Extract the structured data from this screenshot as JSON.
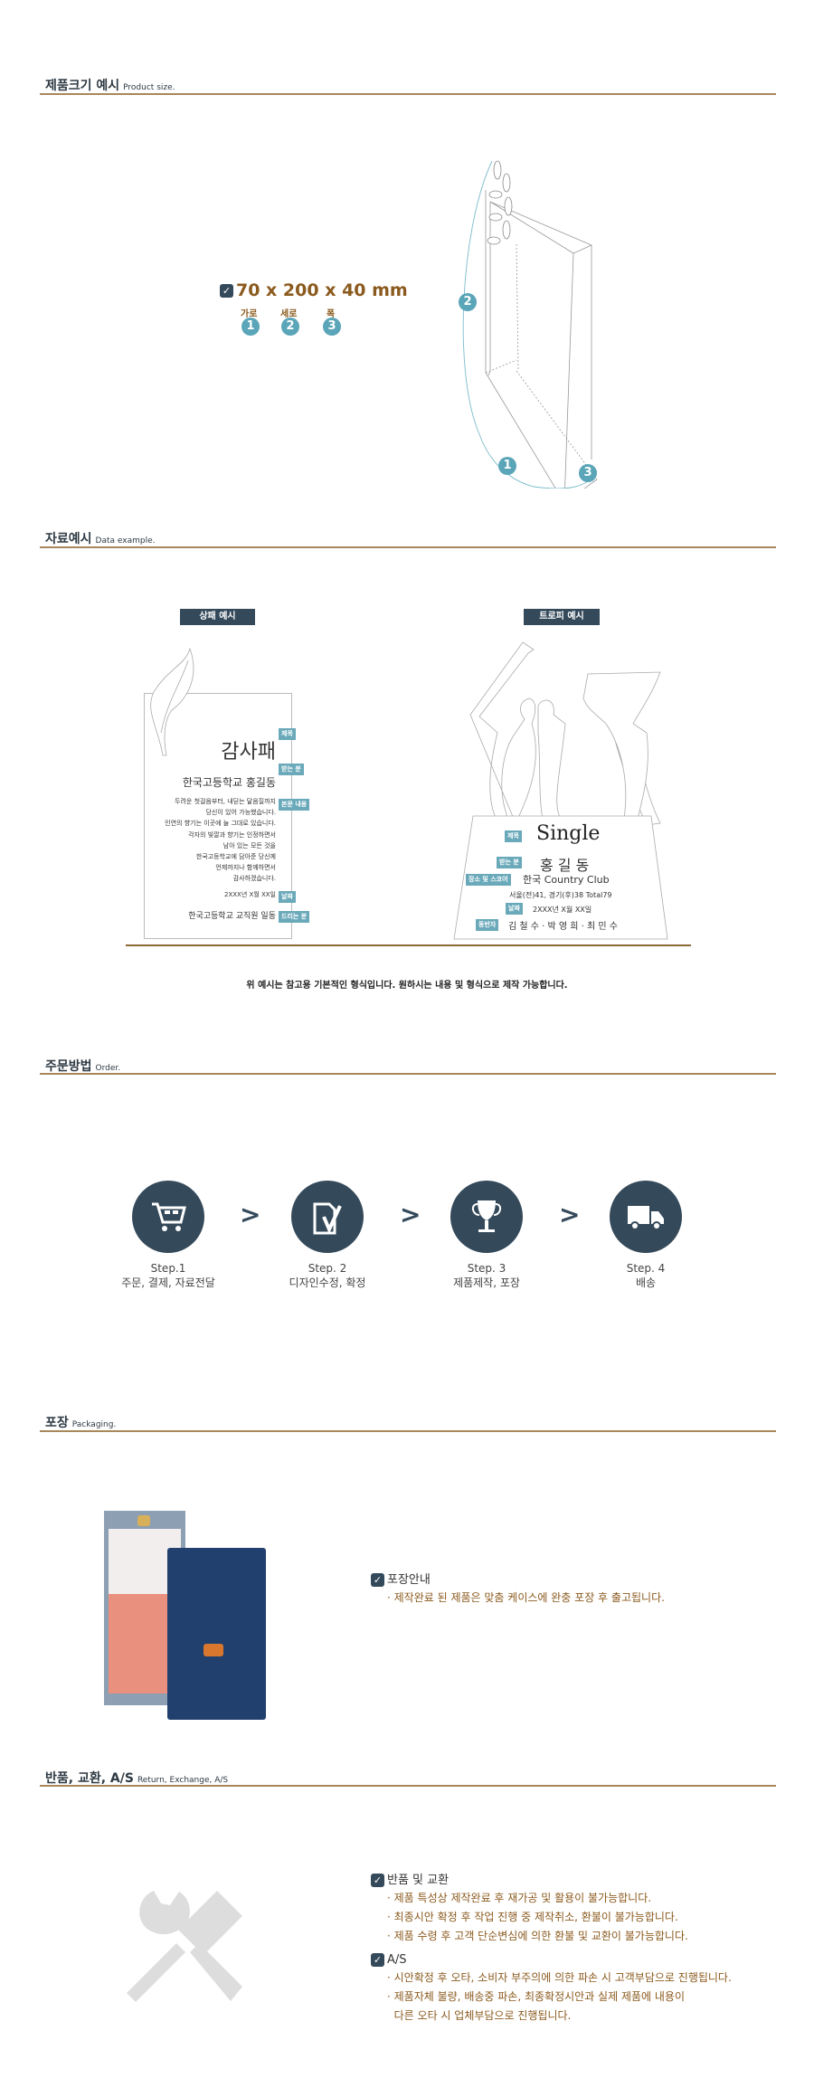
{
  "sections": {
    "size": {
      "title": "제품크기 예시",
      "subtitle": "Product size."
    },
    "data": {
      "title": "자료예시",
      "subtitle": "Data example."
    },
    "order": {
      "title": "주문방법",
      "subtitle": "Order."
    },
    "packaging": {
      "title": "포장",
      "subtitle": "Packaging."
    },
    "return": {
      "title": "반품, 교환, A/S",
      "subtitle": "Return, Exchange, A/S"
    }
  },
  "product_size": {
    "dimensions": "70 x 200 x 40 mm",
    "labels": [
      {
        "label": "가로",
        "num": "1"
      },
      {
        "label": "세로",
        "num": "2"
      },
      {
        "label": "폭",
        "num": "3"
      }
    ],
    "diagram_nums": [
      "2",
      "1",
      "3"
    ]
  },
  "plaque": {
    "label": "상패 예시",
    "title": "감사패",
    "recipient": "한국고등학교 홍길동",
    "body": [
      "두려운 첫걸음부터, 내딛는 달음질까지",
      "당신이 있어 가능했습니다.",
      "인연의 향기는 이곳에 늘 그대로 있습니다.",
      "각자의 빛깔과 향기는 인정하면서",
      "남아 있는 모든 것을",
      "한국고등학교에 담아준 당신께",
      "언제까지나 함께하면서",
      "감사하겠습니다."
    ],
    "date": "2XXX년 X월 XX일",
    "giver": "한국고등학교 교직원 일동",
    "tags": {
      "title": "제목",
      "recipient": "받는 분",
      "body": "본문 내용",
      "date": "날짜",
      "giver": "드리는 분"
    }
  },
  "trophy": {
    "label": "트로피 예시",
    "title": "Single",
    "recipient": "홍 길 동",
    "place": "한국 Country Club",
    "score": "서울(전)41, 경기(후)38 Total79",
    "date": "2XXX년 X월 XX일",
    "companions": "김 철 수 · 박 영 희 · 최 민 수",
    "tags": {
      "title": "제목",
      "recipient": "받는 분",
      "place": "장소 및 스코어",
      "date": "날짜",
      "companions": "동반자"
    }
  },
  "example_note": "위 예시는 참고용 기본적인 형식입니다. 원하시는 내용 및 형식으로 제작 가능합니다.",
  "order_steps": [
    {
      "step": "Step.1",
      "desc": "주문, 결제, 자료전달",
      "icon": "cart-icon"
    },
    {
      "step": "Step. 2",
      "desc": "디자인수정, 확정",
      "icon": "document-check-icon"
    },
    {
      "step": "Step. 3",
      "desc": "제품제작, 포장",
      "icon": "trophy-icon"
    },
    {
      "step": "Step. 4",
      "desc": "배송",
      "icon": "truck-icon"
    }
  ],
  "order_arrow": ">",
  "packaging": {
    "heading": "포장안내",
    "items": [
      "· 제작완료 된 제품은 맞춤 케이스에 완충 포장 후 출고됩니다."
    ]
  },
  "return_info": {
    "groups": [
      {
        "heading": "반품 및 교환",
        "items": [
          "· 제품 특성상 제작완료 후 재가공 및 활용이 불가능합니다.",
          "· 최종시안 확정 후 작업 진행 중 제작취소, 환불이 불가능합니다.",
          "· 제품 수령 후 고객 단순변심에 의한 환불 및 교환이 불가능합니다."
        ]
      },
      {
        "heading": "A/S",
        "items": [
          "· 시안확정 후 오타, 소비자 부주의에 의한 파손 시 고객부담으로 진행됩니다.",
          "· 제품자체 불량, 배송중 파손, 최종확정시안과 실제 제품에 내용이",
          "  다른 오타 시 업체부담으로 진행됩니다."
        ]
      }
    ]
  },
  "colors": {
    "dark": "#34495a",
    "teal": "#5aa5b8",
    "gold_text": "#8b5a1e",
    "rule": "#a8885a"
  }
}
